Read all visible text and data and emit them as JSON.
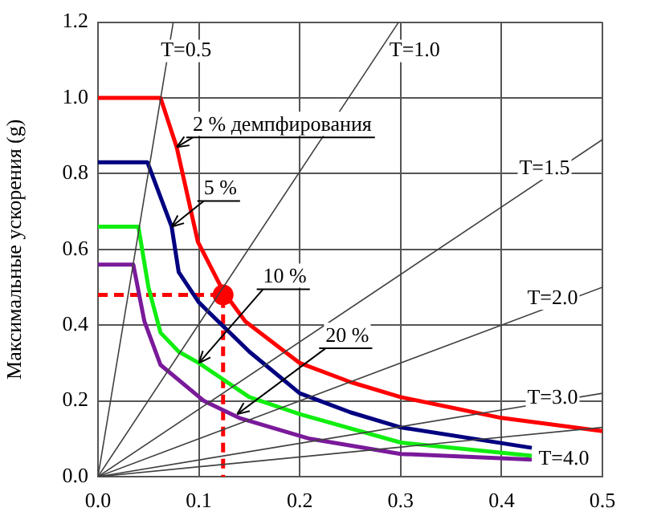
{
  "chart_data": {
    "type": "line",
    "ylabel": "Максимальные ускорения (g)",
    "xlim": [
      0,
      0.5
    ],
    "xticks": [
      {
        "value": 0,
        "label": "0.0"
      },
      0.1,
      0.2,
      0.3,
      0.4,
      0.5
    ],
    "ylim": [
      0,
      1.2
    ],
    "yticks": [
      {
        "value": 0,
        "label": "0.0"
      },
      0.2,
      0.4,
      0.6,
      0.8,
      {
        "value": 1,
        "label": "1.0"
      },
      1.2
    ],
    "grid": true,
    "legend": false,
    "series": [
      {
        "name": "T=0.5",
        "color": "#404040",
        "x": [
          0,
          0.0746
        ],
        "values": [
          0,
          1.2
        ]
      },
      {
        "name": "T=1.0",
        "color": "#404040",
        "x": [
          0,
          0.298
        ],
        "values": [
          0,
          1.2
        ]
      },
      {
        "name": "T=1.5",
        "color": "#404040",
        "x": [
          0,
          0.5
        ],
        "values": [
          0,
          0.89
        ]
      },
      {
        "name": "T=2.0",
        "color": "#404040",
        "x": [
          0,
          0.5
        ],
        "values": [
          0,
          0.5
        ]
      },
      {
        "name": "T=3.0",
        "color": "#404040",
        "x": [
          0,
          0.5
        ],
        "values": [
          0,
          0.22
        ]
      },
      {
        "name": "T=4.0",
        "color": "#404040",
        "x": [
          0,
          0.5
        ],
        "values": [
          0,
          0.13
        ]
      },
      {
        "color": "#ff0000",
        "x": [
          0,
          0.062,
          0.078,
          0.099,
          0.124,
          0.146,
          0.2,
          0.25,
          0.3,
          0.4,
          0.5
        ],
        "values": [
          1.0,
          1.0,
          0.87,
          0.62,
          0.49,
          0.41,
          0.3,
          0.25,
          0.21,
          0.155,
          0.12
        ]
      },
      {
        "color": "#000080",
        "x": [
          0,
          0.049,
          0.073,
          0.08,
          0.1,
          0.15,
          0.2,
          0.25,
          0.3,
          0.43
        ],
        "values": [
          0.83,
          0.83,
          0.66,
          0.54,
          0.46,
          0.33,
          0.22,
          0.17,
          0.13,
          0.076
        ]
      },
      {
        "color": "#11ee11",
        "x": [
          0,
          0.04,
          0.05,
          0.062,
          0.08,
          0.1,
          0.15,
          0.2,
          0.3,
          0.43
        ],
        "values": [
          0.66,
          0.66,
          0.5,
          0.38,
          0.33,
          0.3,
          0.21,
          0.165,
          0.09,
          0.055
        ]
      },
      {
        "color": "#7a1a9a",
        "x": [
          0,
          0.035,
          0.046,
          0.062,
          0.105,
          0.14,
          0.21,
          0.3,
          0.43
        ],
        "values": [
          0.56,
          0.56,
          0.41,
          0.295,
          0.2,
          0.155,
          0.1,
          0.06,
          0.045
        ]
      },
      {
        "color": "#ff0000",
        "line_style": "dashed",
        "x": [
          0,
          0.124,
          0.124
        ],
        "values": [
          0.48,
          0.48,
          0
        ]
      },
      {
        "type": "scatter",
        "marker": "circle",
        "color": "#ff0000",
        "x": [
          0.124
        ],
        "values": [
          0.48
        ]
      }
    ],
    "annotations": [
      {
        "text": "2 % демпфирования",
        "x": 0.078,
        "y": 0.87
      },
      {
        "text": "5 %",
        "x": 0.073,
        "y": 0.66
      },
      {
        "text": "10 %",
        "x": 0.1,
        "y": 0.3
      },
      {
        "text": "20 %",
        "x": 0.138,
        "y": 0.165
      }
    ]
  }
}
